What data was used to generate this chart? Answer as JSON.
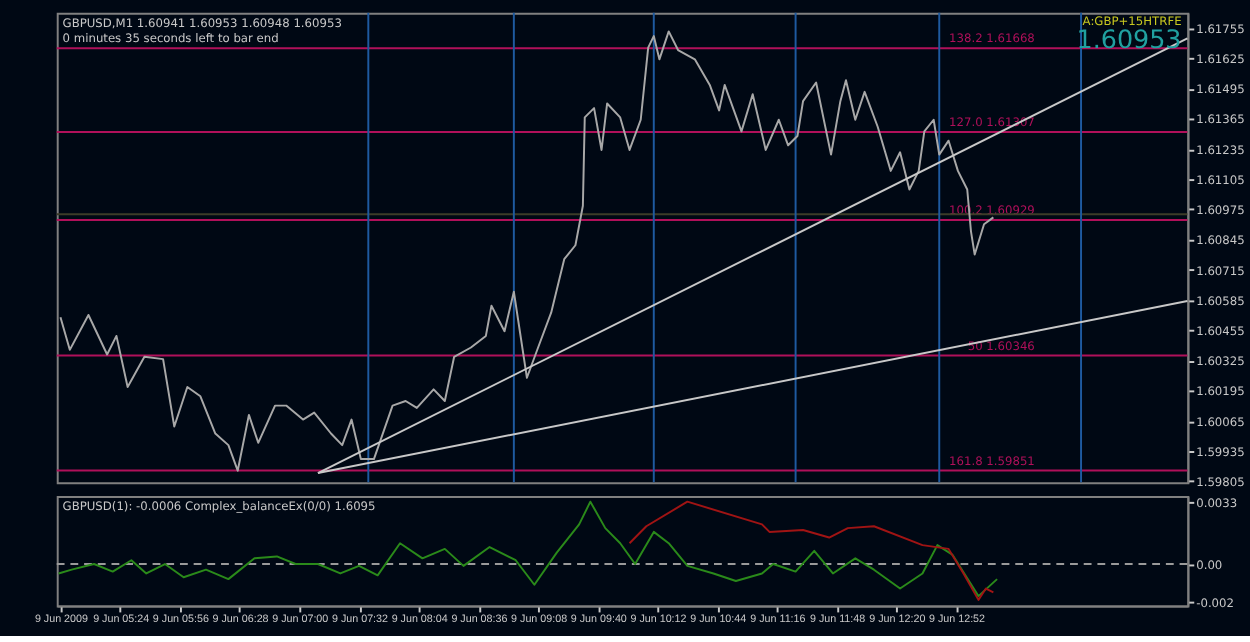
{
  "chart_data": [
    {
      "type": "line",
      "title": "GBPUSD,M1  1.60941 1.60953 1.60948 1.60953",
      "subtitle": "0 minutes 35 seconds left to bar end",
      "annotations": [
        "A:GBP+15HTRFE",
        "1.60953"
      ],
      "xlim": [
        "2009-06-09T04:50",
        "2009-06-09T14:56"
      ],
      "ylim": [
        1.598,
        1.6182
      ],
      "yticks": [
        1.59805,
        1.59935,
        1.60065,
        1.60195,
        1.60325,
        1.60455,
        1.60585,
        1.60715,
        1.60845,
        1.60975,
        1.61105,
        1.61235,
        1.61365,
        1.61495,
        1.61625,
        1.61755
      ],
      "tick_labels": "y",
      "grid": false,
      "marker": "none",
      "line_style": "solid",
      "series": [
        {
          "color": "#a8a8a8",
          "x": [
            "2009-06-09T04:52",
            "2009-06-09T04:57",
            "2009-06-09T05:07",
            "2009-06-09T05:17",
            "2009-06-09T05:22",
            "2009-06-09T05:28",
            "2009-06-09T05:37",
            "2009-06-09T05:47",
            "2009-06-09T05:53",
            "2009-06-09T06:00",
            "2009-06-09T06:07",
            "2009-06-09T06:15",
            "2009-06-09T06:22",
            "2009-06-09T06:27",
            "2009-06-09T06:33",
            "2009-06-09T06:38",
            "2009-06-09T06:47",
            "2009-06-09T06:53",
            "2009-06-09T07:02",
            "2009-06-09T07:08",
            "2009-06-09T07:17",
            "2009-06-09T07:23",
            "2009-06-09T07:28",
            "2009-06-09T07:33",
            "2009-06-09T07:40",
            "2009-06-09T07:50",
            "2009-06-09T07:57",
            "2009-06-09T08:03",
            "2009-06-09T08:12",
            "2009-06-09T08:18",
            "2009-06-09T08:23",
            "2009-06-09T08:32",
            "2009-06-09T08:40",
            "2009-06-09T08:43",
            "2009-06-09T08:50",
            "2009-06-09T08:55",
            "2009-06-09T09:02",
            "2009-06-09T09:08",
            "2009-06-09T09:15",
            "2009-06-09T09:22",
            "2009-06-09T09:28",
            "2009-06-09T09:32",
            "2009-06-09T09:33",
            "2009-06-09T09:38",
            "2009-06-09T09:42",
            "2009-06-09T09:45",
            "2009-06-09T09:52",
            "2009-06-09T09:57",
            "2009-06-09T10:03",
            "2009-06-09T10:07",
            "2009-06-09T10:10",
            "2009-06-09T10:13",
            "2009-06-09T10:18",
            "2009-06-09T10:23",
            "2009-06-09T10:32",
            "2009-06-09T10:40",
            "2009-06-09T10:45",
            "2009-06-09T10:48",
            "2009-06-09T10:57",
            "2009-06-09T11:03",
            "2009-06-09T11:10",
            "2009-06-09T11:17",
            "2009-06-09T11:22",
            "2009-06-09T11:27",
            "2009-06-09T11:30",
            "2009-06-09T11:37",
            "2009-06-09T11:45",
            "2009-06-09T11:50",
            "2009-06-09T11:53",
            "2009-06-09T11:58",
            "2009-06-09T12:03",
            "2009-06-09T12:10",
            "2009-06-09T12:17",
            "2009-06-09T12:22",
            "2009-06-09T12:27",
            "2009-06-09T12:32",
            "2009-06-09T12:35",
            "2009-06-09T12:40",
            "2009-06-09T12:43",
            "2009-06-09T12:48",
            "2009-06-09T12:53",
            "2009-06-09T12:58",
            "2009-06-09T13:00",
            "2009-06-09T13:02",
            "2009-06-09T13:07",
            "2009-06-09T13:12"
          ],
          "values": [
            1.6051,
            1.6037,
            1.6052,
            1.6035,
            1.6043,
            1.6021,
            1.6034,
            1.6033,
            1.6004,
            1.6021,
            1.6017,
            1.6001,
            1.5996,
            1.5985,
            1.6009,
            1.5997,
            1.6013,
            1.6013,
            1.6007,
            1.601,
            1.6001,
            1.5996,
            1.6007,
            1.599,
            1.599,
            1.6013,
            1.6015,
            1.6012,
            1.602,
            1.6015,
            1.6034,
            1.6038,
            1.6043,
            1.6056,
            1.6045,
            1.6062,
            1.6025,
            1.6038,
            1.6053,
            1.6076,
            1.6082,
            1.6099,
            1.6137,
            1.6141,
            1.6123,
            1.6143,
            1.6137,
            1.6123,
            1.6136,
            1.6167,
            1.6172,
            1.6162,
            1.6174,
            1.6166,
            1.6162,
            1.6151,
            1.614,
            1.6151,
            1.6131,
            1.6147,
            1.6123,
            1.6136,
            1.6125,
            1.6129,
            1.6144,
            1.6152,
            1.6121,
            1.6144,
            1.6153,
            1.6136,
            1.6148,
            1.6133,
            1.6114,
            1.6122,
            1.6106,
            1.6114,
            1.6131,
            1.6136,
            1.6121,
            1.6127,
            1.6114,
            1.6106,
            1.6088,
            1.6078,
            1.6091,
            1.6094
          ]
        },
        {
          "type": "line",
          "color": "#c8c8c8",
          "x": [
            "2009-06-09T07:10",
            "2009-06-09T14:56"
          ],
          "values": [
            1.5984,
            1.6171
          ]
        },
        {
          "type": "line",
          "color": "#c8c8c8",
          "x": [
            "2009-06-09T07:10",
            "2009-06-09T14:56"
          ],
          "values": [
            1.5984,
            1.6058
          ]
        }
      ],
      "ref_lines": [
        {
          "axis": "y",
          "value": 1.61668,
          "label": "138.2  1.61668",
          "color": "#b0105a"
        },
        {
          "axis": "y",
          "value": 1.61307,
          "label": "127.0  1.61307",
          "color": "#b0105a"
        },
        {
          "axis": "y",
          "value": 1.60929,
          "label": "100.2  1.60929",
          "color": "#b0105a"
        },
        {
          "axis": "y",
          "value": 1.60346,
          "label": "50  1.60346",
          "color": "#b0105a"
        },
        {
          "axis": "y",
          "value": 1.59851,
          "label": "161.8  1.59851",
          "color": "#b0105a"
        },
        {
          "axis": "y",
          "value": 1.60953,
          "color": "#3c3c28"
        },
        {
          "axis": "x",
          "value": "2009-06-09T07:37",
          "color": "#1e5aa0"
        },
        {
          "axis": "x",
          "value": "2009-06-09T08:55",
          "color": "#1e5aa0"
        },
        {
          "axis": "x",
          "value": "2009-06-09T10:10",
          "color": "#1e5aa0"
        },
        {
          "axis": "x",
          "value": "2009-06-09T11:26",
          "color": "#1e5aa0"
        },
        {
          "axis": "x",
          "value": "2009-06-09T12:43",
          "color": "#1e5aa0"
        },
        {
          "axis": "x",
          "value": "2009-06-09T13:59",
          "color": "#1e5aa0"
        }
      ]
    },
    {
      "type": "line",
      "title": "GBPUSD(1): -0.0006  Complex_balanceEx(0/0) 1.6095",
      "xlim": [
        "2009-06-09T04:50",
        "2009-06-09T14:56"
      ],
      "xticks": [
        {
          "value": "2009-06-09T04:52",
          "label": "9 Jun 2009"
        },
        {
          "value": "2009-06-09T05:24",
          "label": "9 Jun 05:24"
        },
        {
          "value": "2009-06-09T05:56",
          "label": "9 Jun 05:56"
        },
        {
          "value": "2009-06-09T06:28",
          "label": "9 Jun 06:28"
        },
        {
          "value": "2009-06-09T07:00",
          "label": "9 Jun 07:00"
        },
        {
          "value": "2009-06-09T07:32",
          "label": "9 Jun 07:32"
        },
        {
          "value": "2009-06-09T08:04",
          "label": "9 Jun 08:04"
        },
        {
          "value": "2009-06-09T08:36",
          "label": "9 Jun 08:36"
        },
        {
          "value": "2009-06-09T09:08",
          "label": "9 Jun 09:08"
        },
        {
          "value": "2009-06-09T09:40",
          "label": "9 Jun 09:40"
        },
        {
          "value": "2009-06-09T10:12",
          "label": "9 Jun 10:12"
        },
        {
          "value": "2009-06-09T10:44",
          "label": "9 Jun 10:44"
        },
        {
          "value": "2009-06-09T11:16",
          "label": "9 Jun 11:16"
        },
        {
          "value": "2009-06-09T11:48",
          "label": "9 Jun 11:48"
        },
        {
          "value": "2009-06-09T12:20",
          "label": "9 Jun 12:20"
        },
        {
          "value": "2009-06-09T12:52",
          "label": "9 Jun 12:52"
        }
      ],
      "ylim": [
        -0.0022,
        0.0036
      ],
      "yticks": [
        -0.002,
        {
          "value": 0,
          "label": "0.00"
        },
        0.0033
      ],
      "grid": false,
      "marker": "none",
      "line_style": "solid",
      "series": [
        {
          "color": "#2a8a1a",
          "x": [
            "2009-06-09T04:51",
            "2009-06-09T04:58",
            "2009-06-09T05:10",
            "2009-06-09T05:20",
            "2009-06-09T05:30",
            "2009-06-09T05:38",
            "2009-06-09T05:48",
            "2009-06-09T05:58",
            "2009-06-09T06:10",
            "2009-06-09T06:22",
            "2009-06-09T06:36",
            "2009-06-09T06:48",
            "2009-06-09T06:58",
            "2009-06-09T07:10",
            "2009-06-09T07:22",
            "2009-06-09T07:32",
            "2009-06-09T07:42",
            "2009-06-09T07:54",
            "2009-06-09T08:06",
            "2009-06-09T08:18",
            "2009-06-09T08:28",
            "2009-06-09T08:42",
            "2009-06-09T08:56",
            "2009-06-09T09:06",
            "2009-06-09T09:18",
            "2009-06-09T09:30",
            "2009-06-09T09:36",
            "2009-06-09T09:44",
            "2009-06-09T09:52",
            "2009-06-09T10:00",
            "2009-06-09T10:10",
            "2009-06-09T10:18",
            "2009-06-09T10:28",
            "2009-06-09T10:42",
            "2009-06-09T10:54",
            "2009-06-09T11:08",
            "2009-06-09T11:14",
            "2009-06-09T11:26",
            "2009-06-09T11:36",
            "2009-06-09T11:46",
            "2009-06-09T11:58",
            "2009-06-09T12:08",
            "2009-06-09T12:22",
            "2009-06-09T12:34",
            "2009-06-09T12:42",
            "2009-06-09T12:50",
            "2009-06-09T13:04",
            "2009-06-09T13:14"
          ],
          "values": [
            -0.0005,
            -0.0003,
            0,
            -0.0004,
            0.0002,
            -0.0005,
            0,
            -0.0007,
            -0.0003,
            -0.0008,
            0.0003,
            0.0004,
            0,
            0,
            -0.0005,
            -0.0001,
            -0.0006,
            0.0011,
            0.0003,
            0.0008,
            -0.0001,
            0.0009,
            0.0002,
            -0.0011,
            0.0006,
            0.0021,
            0.0033,
            0.0019,
            0.0011,
            0,
            0.0017,
            0.0011,
            -0.0001,
            -0.0005,
            -0.0009,
            -0.0005,
            0,
            -0.0004,
            0.0007,
            -0.0005,
            0.0003,
            -0.0003,
            -0.0013,
            -0.0005,
            0.001,
            0.0005,
            -0.0017,
            -0.0008
          ]
        },
        {
          "color": "#a01414",
          "x": [
            "2009-06-09T09:57",
            "2009-06-09T10:06",
            "2009-06-09T10:28",
            "2009-06-09T11:08",
            "2009-06-09T11:12",
            "2009-06-09T11:30",
            "2009-06-09T11:44",
            "2009-06-09T11:54",
            "2009-06-09T12:08",
            "2009-06-09T12:34",
            "2009-06-09T12:48",
            "2009-06-09T12:56",
            "2009-06-09T13:04",
            "2009-06-09T13:08",
            "2009-06-09T13:12"
          ],
          "values": [
            0.0011,
            0.002,
            0.0033,
            0.0021,
            0.0017,
            0.0018,
            0.0014,
            0.0019,
            0.002,
            0.001,
            0.0008,
            -0.0005,
            -0.0019,
            -0.0013,
            -0.0015
          ]
        }
      ],
      "ref_lines": [
        {
          "axis": "y",
          "value": 0,
          "color": "#9a9a9a",
          "line_style": "dashed"
        }
      ]
    }
  ]
}
